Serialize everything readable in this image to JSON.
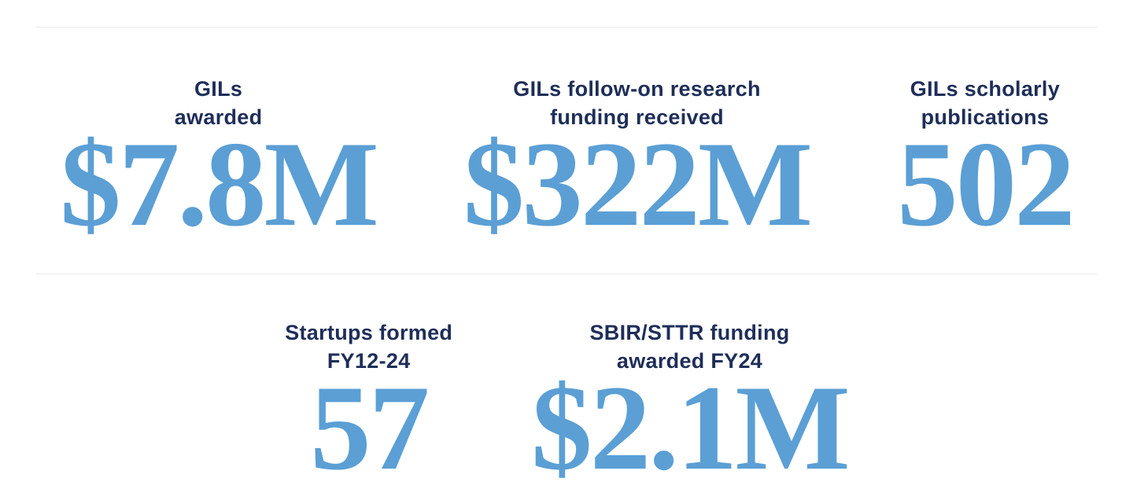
{
  "colors": {
    "label": "#1E2E58",
    "value": "#5B9FD5",
    "divider": "#EBEBEB",
    "background": "#FFFFFF"
  },
  "stats": {
    "rows": [
      {
        "items": [
          {
            "label": "GILs\nawarded",
            "value": "$7.8M"
          },
          {
            "label": "GILs follow-on research\nfunding received",
            "value": "$322M"
          },
          {
            "label": "GILs scholarly\npublications",
            "value": "502"
          }
        ]
      },
      {
        "items": [
          {
            "label": "Startups formed\nFY12-24",
            "value": "57"
          },
          {
            "label": "SBIR/STTR funding\nawarded FY24",
            "value": "$2.1M"
          }
        ]
      }
    ]
  }
}
